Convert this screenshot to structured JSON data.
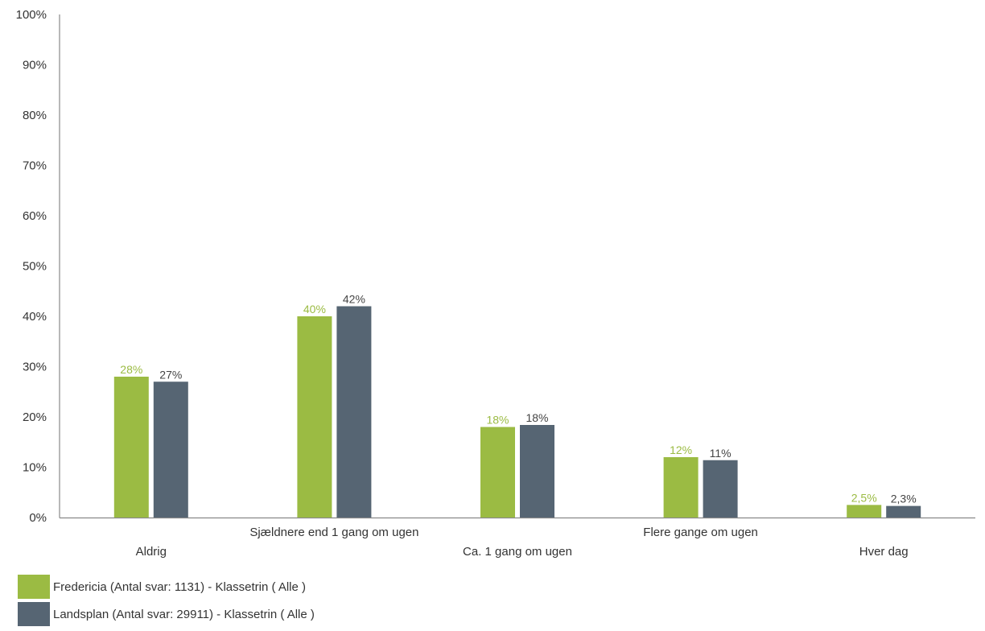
{
  "chart_data": {
    "type": "bar",
    "title": "",
    "xlabel": "",
    "ylabel": "",
    "ylim": [
      0,
      100
    ],
    "yticks": [
      "0%",
      "10%",
      "20%",
      "30%",
      "40%",
      "50%",
      "60%",
      "70%",
      "80%",
      "90%",
      "100%"
    ],
    "categories": [
      "Aldrig",
      "Sjældnere end 1 gang om ugen",
      "Ca. 1 gang om ugen",
      "Flere gange om ugen",
      "Hver dag"
    ],
    "series": [
      {
        "name": "Fredericia (Antal svar: 1131)  - Klassetrin ( Alle )",
        "color": "#9bbb43",
        "values": [
          28,
          40,
          18,
          12,
          2.5
        ],
        "labels": [
          "28%",
          "40%",
          "18%",
          "12%",
          "2,5%"
        ]
      },
      {
        "name": "Landsplan (Antal svar: 29911)  - Klassetrin ( Alle )",
        "color": "#566573",
        "values": [
          27,
          42,
          18.4,
          11.4,
          2.3
        ],
        "labels": [
          "27%",
          "42%",
          "18%",
          "11%",
          "2,3%"
        ]
      }
    ],
    "grid": false,
    "legend_position": "bottom-left"
  }
}
